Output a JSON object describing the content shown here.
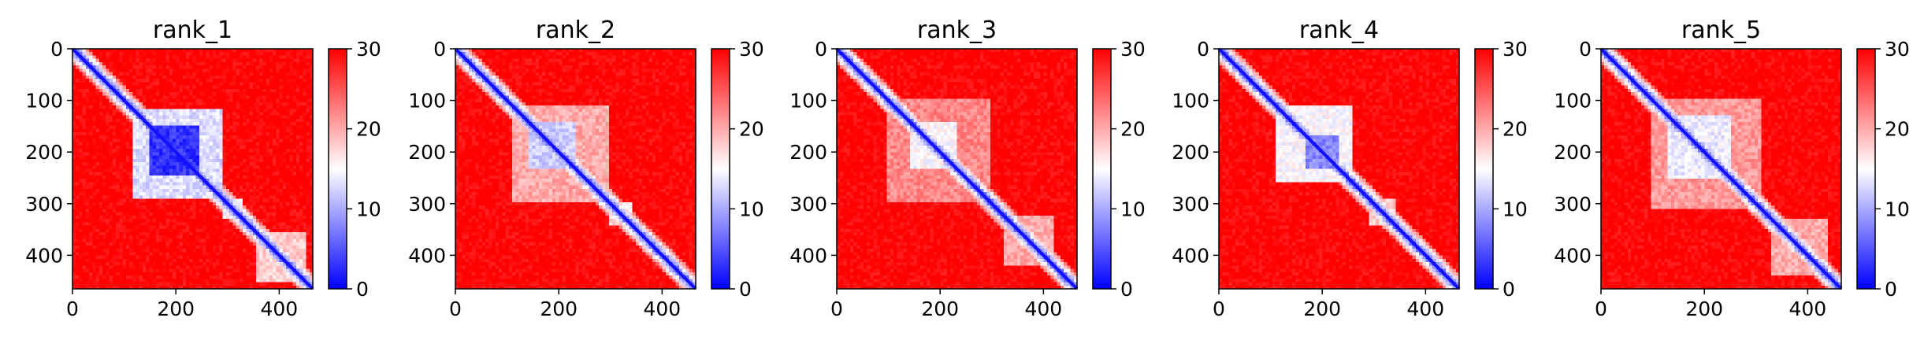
{
  "chart_data": [
    {
      "type": "heatmap",
      "title": "rank_1",
      "xlabel": "",
      "ylabel": "",
      "matrix_size": 465,
      "xlim": [
        0,
        465
      ],
      "ylim": [
        465,
        0
      ],
      "x_ticks": [
        0,
        200,
        400
      ],
      "y_ticks": [
        0,
        100,
        200,
        300,
        400
      ],
      "colorbar": {
        "min": 0,
        "max": 30,
        "ticks": [
          0,
          10,
          20,
          30
        ],
        "colormap": "bwr",
        "low_color": "#0000ff",
        "mid_color": "#ffffff",
        "high_color": "#ff0000"
      },
      "low_error_blocks": [
        {
          "start": 150,
          "end": 245,
          "value": 3
        },
        {
          "start": 115,
          "end": 290,
          "value": 13
        },
        {
          "start": 290,
          "end": 330,
          "value": 15
        },
        {
          "start": 355,
          "end": 455,
          "value": 18
        }
      ]
    },
    {
      "type": "heatmap",
      "title": "rank_2",
      "xlabel": "",
      "ylabel": "",
      "matrix_size": 465,
      "xlim": [
        0,
        465
      ],
      "ylim": [
        465,
        0
      ],
      "x_ticks": [
        0,
        200,
        400
      ],
      "y_ticks": [
        0,
        100,
        200,
        300,
        400
      ],
      "colorbar": {
        "min": 0,
        "max": 30,
        "ticks": [
          0,
          10,
          20,
          30
        ],
        "colormap": "bwr",
        "low_color": "#0000ff",
        "mid_color": "#ffffff",
        "high_color": "#ff0000"
      },
      "low_error_blocks": [
        {
          "start": 145,
          "end": 235,
          "value": 12
        },
        {
          "start": 110,
          "end": 300,
          "value": 20
        },
        {
          "start": 300,
          "end": 340,
          "value": 17
        }
      ]
    },
    {
      "type": "heatmap",
      "title": "rank_3",
      "xlabel": "",
      "ylabel": "",
      "matrix_size": 465,
      "xlim": [
        0,
        465
      ],
      "ylim": [
        465,
        0
      ],
      "x_ticks": [
        0,
        200,
        400
      ],
      "y_ticks": [
        0,
        100,
        200,
        300,
        400
      ],
      "colorbar": {
        "min": 0,
        "max": 30,
        "ticks": [
          0,
          10,
          20,
          30
        ],
        "colormap": "bwr",
        "low_color": "#0000ff",
        "mid_color": "#ffffff",
        "high_color": "#ff0000"
      },
      "low_error_blocks": [
        {
          "start": 140,
          "end": 230,
          "value": 15
        },
        {
          "start": 100,
          "end": 300,
          "value": 22
        },
        {
          "start": 320,
          "end": 420,
          "value": 20
        }
      ]
    },
    {
      "type": "heatmap",
      "title": "rank_4",
      "xlabel": "",
      "ylabel": "",
      "matrix_size": 465,
      "xlim": [
        0,
        465
      ],
      "ylim": [
        465,
        0
      ],
      "x_ticks": [
        0,
        200,
        400
      ],
      "y_ticks": [
        0,
        100,
        200,
        300,
        400
      ],
      "colorbar": {
        "min": 0,
        "max": 30,
        "ticks": [
          0,
          10,
          20,
          30
        ],
        "colormap": "bwr",
        "low_color": "#0000ff",
        "mid_color": "#ffffff",
        "high_color": "#ff0000"
      },
      "low_error_blocks": [
        {
          "start": 170,
          "end": 230,
          "value": 8
        },
        {
          "start": 110,
          "end": 260,
          "value": 15
        },
        {
          "start": 290,
          "end": 340,
          "value": 18
        }
      ]
    },
    {
      "type": "heatmap",
      "title": "rank_5",
      "xlabel": "",
      "ylabel": "",
      "matrix_size": 465,
      "xlim": [
        0,
        465
      ],
      "ylim": [
        465,
        0
      ],
      "x_ticks": [
        0,
        200,
        400
      ],
      "y_ticks": [
        0,
        100,
        200,
        300,
        400
      ],
      "colorbar": {
        "min": 0,
        "max": 30,
        "ticks": [
          0,
          10,
          20,
          30
        ],
        "colormap": "bwr",
        "low_color": "#0000ff",
        "mid_color": "#ffffff",
        "high_color": "#ff0000"
      },
      "low_error_blocks": [
        {
          "start": 130,
          "end": 250,
          "value": 14
        },
        {
          "start": 100,
          "end": 310,
          "value": 21
        },
        {
          "start": 330,
          "end": 440,
          "value": 20
        }
      ]
    }
  ]
}
